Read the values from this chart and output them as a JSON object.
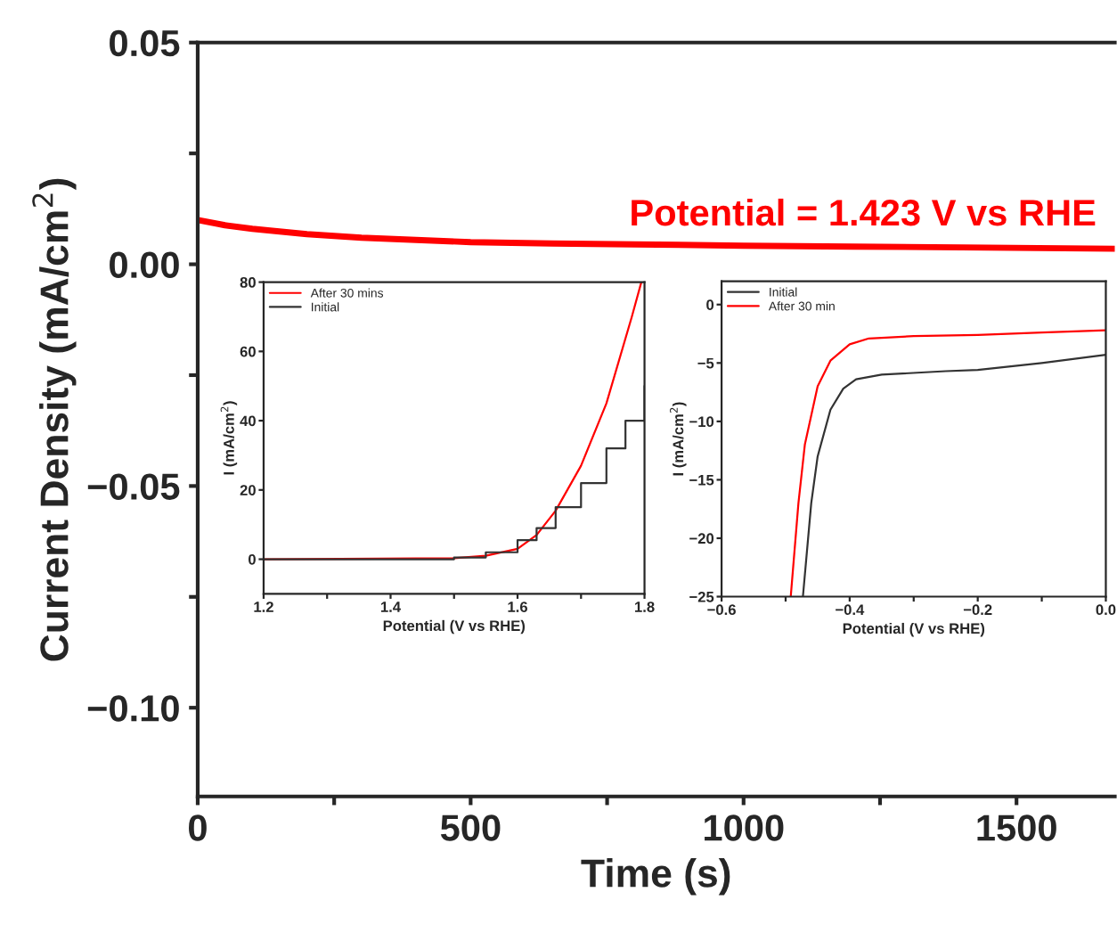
{
  "chart_data": [
    {
      "type": "line",
      "xlabel": "Time (s)",
      "ylabel": "Current Density (mA/cm$^{2}$)",
      "xlim": [
        0,
        1680
      ],
      "ylim": [
        -0.12,
        0.05
      ],
      "xticks": [
        0,
        {
          "value": 250,
          "label": null
        },
        500,
        {
          "value": 750,
          "label": null
        },
        1000,
        {
          "value": 1250,
          "label": null
        },
        1500
      ],
      "yticks": [
        {
          "value": -0.1,
          "label": "−0.10"
        },
        {
          "value": -0.075,
          "label": null
        },
        {
          "value": -0.05,
          "label": "−0.05"
        },
        {
          "value": -0.025,
          "label": null
        },
        {
          "value": 0,
          "label": "0.00"
        },
        {
          "value": 0.025,
          "label": null
        },
        {
          "value": 0.05,
          "label": "0.05"
        }
      ],
      "annotations": [
        "Potential = 1.423 V vs RHE"
      ],
      "legend": false,
      "grid": false,
      "series": [
        {
          "color": "#ff0000",
          "x": [
            0,
            50,
            100,
            200,
            300,
            400,
            500,
            650,
            800,
            1000,
            1200,
            1400,
            1680
          ],
          "values": [
            0.01,
            0.0088,
            0.008,
            0.0068,
            0.006,
            0.0055,
            0.005,
            0.0047,
            0.0045,
            0.0042,
            0.004,
            0.0038,
            0.0035
          ]
        }
      ]
    },
    {
      "type": "line",
      "xlabel": "Potential (V vs RHE)",
      "ylabel": "I (mA/cm$^{2}$)",
      "xlim": [
        1.2,
        1.8
      ],
      "ylim": [
        -10,
        80
      ],
      "xticks": [
        1.2,
        {
          "value": 1.3,
          "label": null
        },
        1.4,
        {
          "value": 1.5,
          "label": null
        },
        1.6,
        {
          "value": 1.7,
          "label": null
        },
        1.8
      ],
      "yticks": [
        0,
        20,
        40,
        60,
        80
      ],
      "legend": "top left",
      "grid": false,
      "series": [
        {
          "name": "After 30 mins",
          "color": "#ff0000",
          "x": [
            1.2,
            1.5,
            1.55,
            1.6,
            1.63,
            1.66,
            1.7,
            1.74,
            1.78,
            1.795
          ],
          "values": [
            0,
            0.3,
            1,
            3,
            7,
            14,
            27,
            45,
            70,
            80
          ]
        },
        {
          "name": "Initial",
          "type": "step",
          "color": "#333333",
          "x": [
            1.2,
            1.5,
            1.55,
            1.6,
            1.63,
            1.66,
            1.7,
            1.74,
            1.77,
            1.8
          ],
          "values": [
            0,
            0.5,
            2,
            5.5,
            9,
            15,
            22,
            32,
            40,
            50
          ]
        }
      ]
    },
    {
      "type": "line",
      "xlabel": "Potential (V vs RHE)",
      "ylabel": "I (mA/cm$^{2}$)",
      "xlim": [
        -0.6,
        0.0
      ],
      "ylim": [
        -25,
        2
      ],
      "xticks": [
        {
          "value": -0.6,
          "label": "−0.6"
        },
        {
          "value": -0.5,
          "label": null
        },
        {
          "value": -0.4,
          "label": "−0.4"
        },
        {
          "value": -0.3,
          "label": null
        },
        {
          "value": -0.2,
          "label": "−0.2"
        },
        {
          "value": -0.1,
          "label": null
        },
        {
          "value": 0.0,
          "label": "0.0"
        }
      ],
      "yticks": [
        {
          "value": -25,
          "label": "−25"
        },
        {
          "value": -20,
          "label": "−20"
        },
        {
          "value": -15,
          "label": "−15"
        },
        {
          "value": -10,
          "label": "−10"
        },
        {
          "value": -5,
          "label": "−5"
        },
        {
          "value": 0,
          "label": "0"
        }
      ],
      "legend": "top left",
      "grid": false,
      "series": [
        {
          "name": "Initial",
          "color": "#333333",
          "x": [
            -0.473,
            -0.46,
            -0.45,
            -0.43,
            -0.41,
            -0.39,
            -0.35,
            -0.25,
            -0.2,
            -0.1,
            0.0
          ],
          "values": [
            -25,
            -17,
            -13,
            -9,
            -7.2,
            -6.4,
            -6,
            -5.7,
            -5.6,
            -5,
            -4.3
          ]
        },
        {
          "name": "After 30 min",
          "color": "#ff0000",
          "x": [
            -0.492,
            -0.48,
            -0.47,
            -0.45,
            -0.43,
            -0.4,
            -0.37,
            -0.3,
            -0.2,
            -0.1,
            0.0
          ],
          "values": [
            -25,
            -17,
            -12,
            -7,
            -4.8,
            -3.4,
            -2.9,
            -2.7,
            -2.6,
            -2.4,
            -2.2
          ]
        }
      ]
    }
  ]
}
